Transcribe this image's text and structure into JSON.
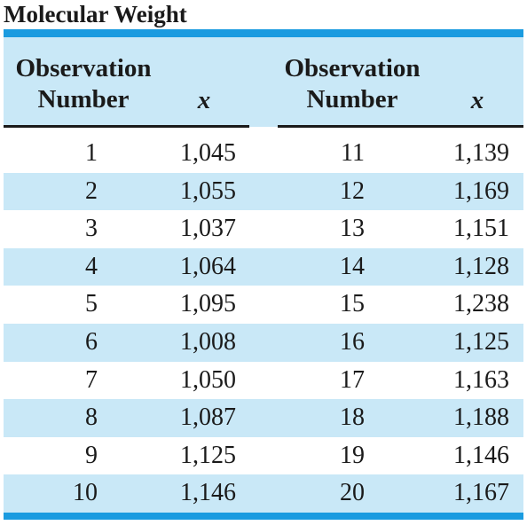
{
  "title": "Molecular Weight",
  "header": {
    "left_col1": [
      "Observation",
      "Number"
    ],
    "left_col2": "x",
    "right_col1": [
      "Observation",
      "Number"
    ],
    "right_col2": "x"
  },
  "colors": {
    "rule": "#1a9be0",
    "band": "#c9e8f7",
    "text": "#1a1a1a"
  },
  "rows": [
    {
      "n1": "1",
      "x1": "1,045",
      "n2": "11",
      "x2": "1,139"
    },
    {
      "n1": "2",
      "x1": "1,055",
      "n2": "12",
      "x2": "1,169"
    },
    {
      "n1": "3",
      "x1": "1,037",
      "n2": "13",
      "x2": "1,151"
    },
    {
      "n1": "4",
      "x1": "1,064",
      "n2": "14",
      "x2": "1,128"
    },
    {
      "n1": "5",
      "x1": "1,095",
      "n2": "15",
      "x2": "1,238"
    },
    {
      "n1": "6",
      "x1": "1,008",
      "n2": "16",
      "x2": "1,125"
    },
    {
      "n1": "7",
      "x1": "1,050",
      "n2": "17",
      "x2": "1,163"
    },
    {
      "n1": "8",
      "x1": "1,087",
      "n2": "18",
      "x2": "1,188"
    },
    {
      "n1": "9",
      "x1": "1,125",
      "n2": "19",
      "x2": "1,146"
    },
    {
      "n1": "10",
      "x1": "1,146",
      "n2": "20",
      "x2": "1,167"
    }
  ]
}
